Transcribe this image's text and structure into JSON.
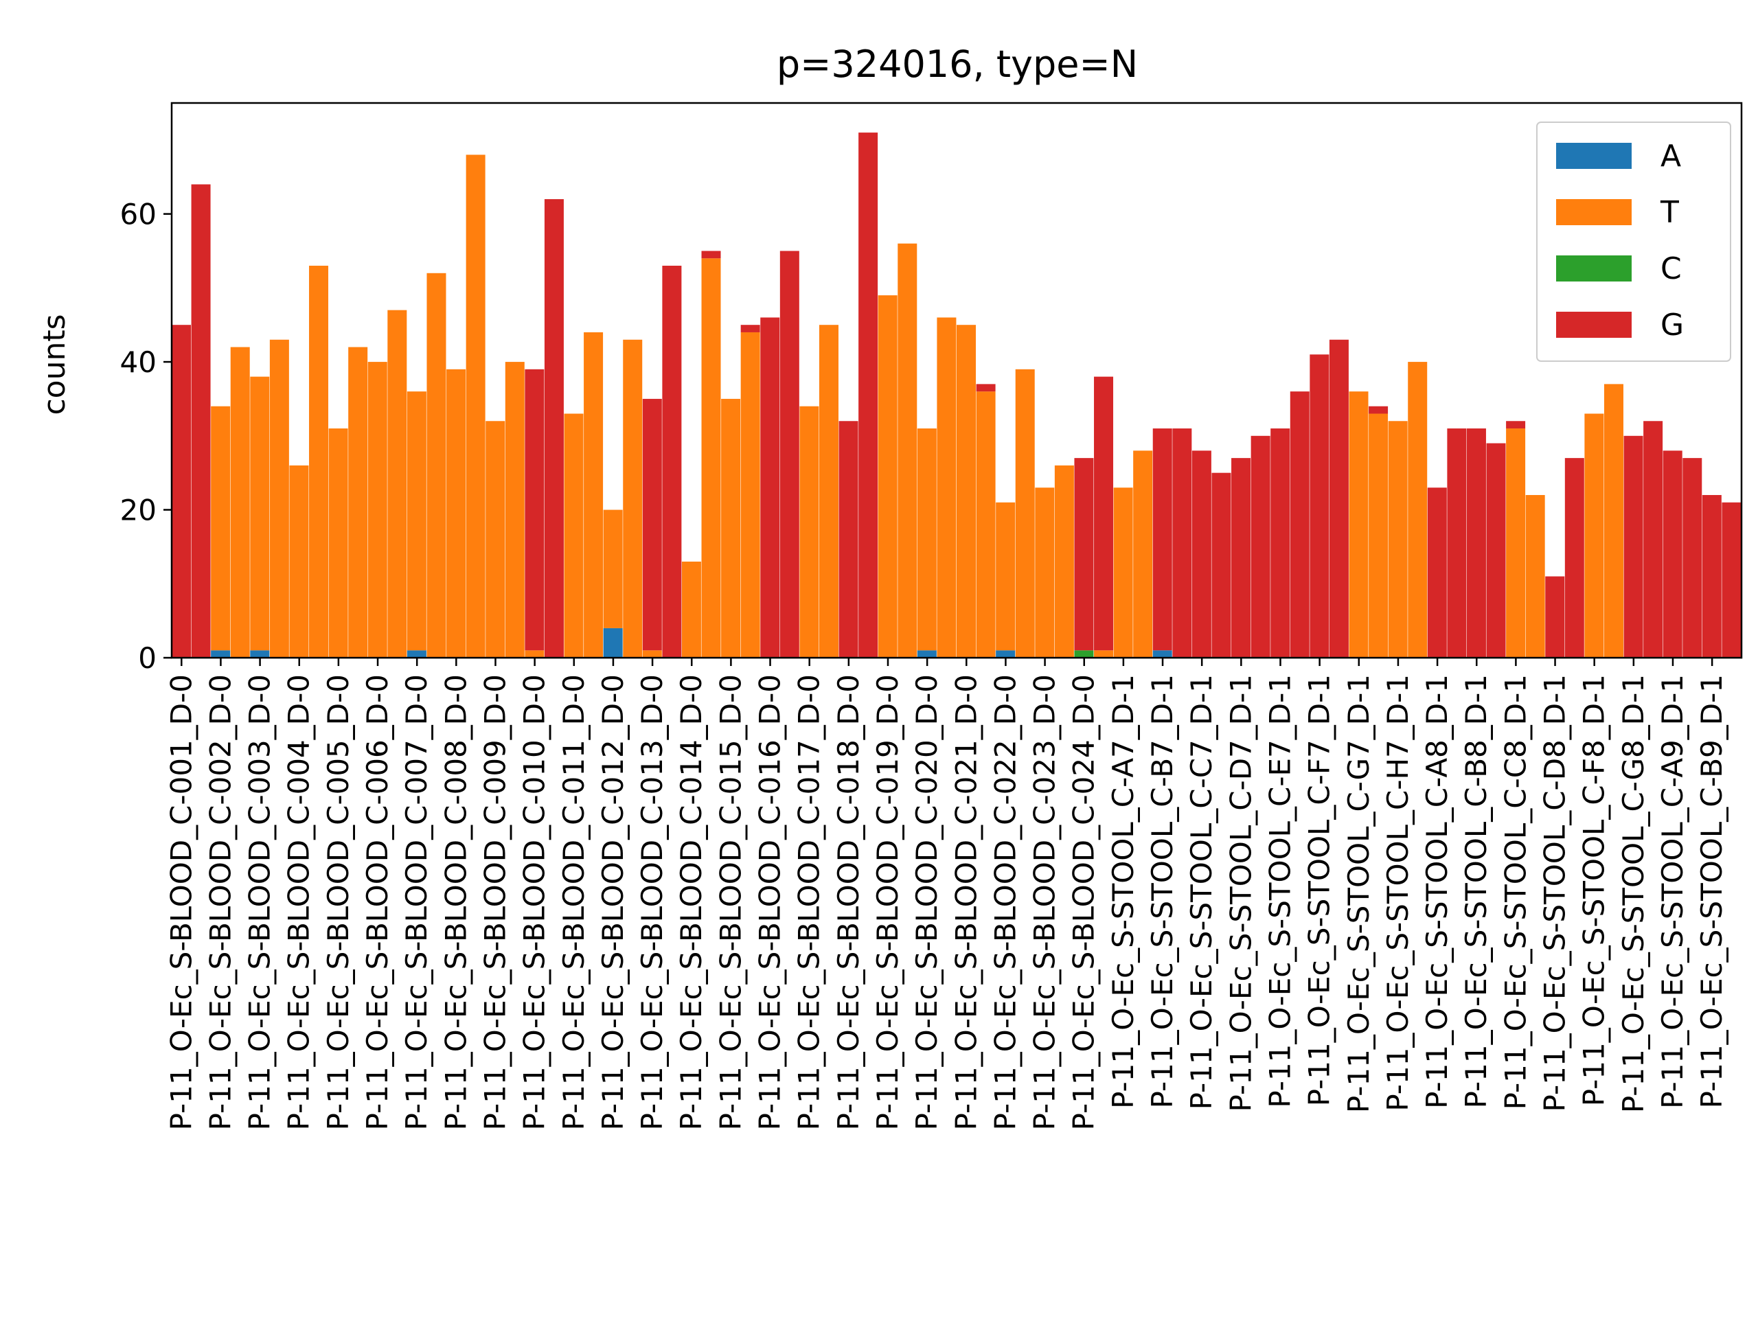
{
  "chart_data": {
    "type": "bar",
    "title": "p=324016, type=N",
    "xlabel": "",
    "ylabel": "counts",
    "ylim": [
      0,
      75
    ],
    "yticks": [
      0,
      20,
      40,
      60
    ],
    "grid": false,
    "legend_position": "top-right",
    "categories": [
      "P-11_O-Ec_S-BLOOD_C-001_D-0",
      "P-11_O-Ec_S-BLOOD_C-002_D-0",
      "P-11_O-Ec_S-BLOOD_C-003_D-0",
      "P-11_O-Ec_S-BLOOD_C-004_D-0",
      "P-11_O-Ec_S-BLOOD_C-005_D-0",
      "P-11_O-Ec_S-BLOOD_C-006_D-0",
      "P-11_O-Ec_S-BLOOD_C-007_D-0",
      "P-11_O-Ec_S-BLOOD_C-008_D-0",
      "P-11_O-Ec_S-BLOOD_C-009_D-0",
      "P-11_O-Ec_S-BLOOD_C-010_D-0",
      "P-11_O-Ec_S-BLOOD_C-011_D-0",
      "P-11_O-Ec_S-BLOOD_C-012_D-0",
      "P-11_O-Ec_S-BLOOD_C-013_D-0",
      "P-11_O-Ec_S-BLOOD_C-014_D-0",
      "P-11_O-Ec_S-BLOOD_C-015_D-0",
      "P-11_O-Ec_S-BLOOD_C-016_D-0",
      "P-11_O-Ec_S-BLOOD_C-017_D-0",
      "P-11_O-Ec_S-BLOOD_C-018_D-0",
      "P-11_O-Ec_S-BLOOD_C-019_D-0",
      "P-11_O-Ec_S-BLOOD_C-020_D-0",
      "P-11_O-Ec_S-BLOOD_C-021_D-0",
      "P-11_O-Ec_S-BLOOD_C-022_D-0",
      "P-11_O-Ec_S-BLOOD_C-023_D-0",
      "P-11_O-Ec_S-BLOOD_C-024_D-0",
      "P-11_O-Ec_S-STOOL_C-A7_D-1",
      "P-11_O-Ec_S-STOOL_C-B7_D-1",
      "P-11_O-Ec_S-STOOL_C-C7_D-1",
      "P-11_O-Ec_S-STOOL_C-D7_D-1",
      "P-11_O-Ec_S-STOOL_C-E7_D-1",
      "P-11_O-Ec_S-STOOL_C-F7_D-1",
      "P-11_O-Ec_S-STOOL_C-G7_D-1",
      "P-11_O-Ec_S-STOOL_C-H7_D-1",
      "P-11_O-Ec_S-STOOL_C-A8_D-1",
      "P-11_O-Ec_S-STOOL_C-B8_D-1",
      "P-11_O-Ec_S-STOOL_C-C8_D-1",
      "P-11_O-Ec_S-STOOL_C-D8_D-1",
      "P-11_O-Ec_S-STOOL_C-F8_D-1",
      "P-11_O-Ec_S-STOOL_C-G8_D-1",
      "P-11_O-Ec_S-STOOL_C-A9_D-1",
      "P-11_O-Ec_S-STOOL_C-B9_D-1"
    ],
    "stack_order": [
      "A",
      "T",
      "C",
      "G"
    ],
    "groups": [
      {
        "name": "left",
        "series": [
          {
            "name": "A",
            "color": "#1f77b4",
            "values": [
              0,
              1,
              1,
              0,
              0,
              0,
              1,
              0,
              0,
              0,
              0,
              4,
              0,
              0,
              0,
              0,
              0,
              0,
              0,
              1,
              0,
              1,
              0,
              0,
              0,
              1,
              0,
              0,
              0,
              0,
              0,
              0,
              0,
              0,
              0,
              0,
              0,
              0,
              0,
              0
            ]
          },
          {
            "name": "T",
            "color": "#ff7f0e",
            "values": [
              0,
              33,
              37,
              26,
              31,
              40,
              35,
              39,
              32,
              1,
              33,
              16,
              1,
              13,
              35,
              0,
              34,
              0,
              49,
              30,
              45,
              20,
              23,
              0,
              23,
              0,
              0,
              0,
              0,
              0,
              36,
              32,
              0,
              0,
              31,
              0,
              33,
              0,
              0,
              0
            ]
          },
          {
            "name": "C",
            "color": "#2ca02c",
            "values": [
              0,
              0,
              0,
              0,
              0,
              0,
              0,
              0,
              0,
              0,
              0,
              0,
              0,
              0,
              0,
              0,
              0,
              0,
              0,
              0,
              0,
              0,
              0,
              1,
              0,
              0,
              0,
              0,
              0,
              0,
              0,
              0,
              0,
              0,
              0,
              0,
              0,
              0,
              0,
              0
            ]
          },
          {
            "name": "G",
            "color": "#d62728",
            "values": [
              45,
              0,
              0,
              0,
              0,
              0,
              0,
              0,
              0,
              38,
              0,
              0,
              34,
              0,
              0,
              46,
              0,
              32,
              0,
              0,
              0,
              0,
              0,
              26,
              0,
              30,
              28,
              27,
              31,
              41,
              0,
              0,
              23,
              31,
              1,
              11,
              0,
              30,
              28,
              22
            ]
          }
        ]
      },
      {
        "name": "right",
        "series": [
          {
            "name": "A",
            "color": "#1f77b4",
            "values": [
              0,
              0,
              0,
              0,
              0,
              0,
              0,
              0,
              0,
              0,
              0,
              0,
              0,
              0,
              0,
              0,
              0,
              0,
              0,
              0,
              0,
              0,
              0,
              0,
              0,
              0,
              0,
              0,
              0,
              0,
              0,
              0,
              0,
              0,
              0,
              0,
              0,
              0,
              0,
              0
            ]
          },
          {
            "name": "T",
            "color": "#ff7f0e",
            "values": [
              0,
              42,
              43,
              53,
              42,
              47,
              52,
              68,
              40,
              0,
              44,
              43,
              0,
              54,
              44,
              0,
              45,
              0,
              56,
              46,
              36,
              39,
              26,
              1,
              28,
              0,
              0,
              0,
              0,
              0,
              33,
              40,
              0,
              0,
              22,
              0,
              37,
              0,
              0,
              0
            ]
          },
          {
            "name": "C",
            "color": "#2ca02c",
            "values": [
              0,
              0,
              0,
              0,
              0,
              0,
              0,
              0,
              0,
              0,
              0,
              0,
              0,
              0,
              0,
              0,
              0,
              0,
              0,
              0,
              0,
              0,
              0,
              0,
              0,
              0,
              0,
              0,
              0,
              0,
              0,
              0,
              0,
              0,
              0,
              0,
              0,
              0,
              0,
              0
            ]
          },
          {
            "name": "G",
            "color": "#d62728",
            "values": [
              64,
              0,
              0,
              0,
              0,
              0,
              0,
              0,
              0,
              62,
              0,
              0,
              53,
              1,
              1,
              55,
              0,
              71,
              0,
              0,
              1,
              0,
              0,
              37,
              0,
              31,
              25,
              30,
              36,
              43,
              1,
              0,
              31,
              29,
              0,
              27,
              0,
              32,
              27,
              21
            ]
          }
        ]
      }
    ],
    "legend": [
      {
        "label": "A",
        "color": "#1f77b4"
      },
      {
        "label": "T",
        "color": "#ff7f0e"
      },
      {
        "label": "C",
        "color": "#2ca02c"
      },
      {
        "label": "G",
        "color": "#d62728"
      }
    ]
  }
}
